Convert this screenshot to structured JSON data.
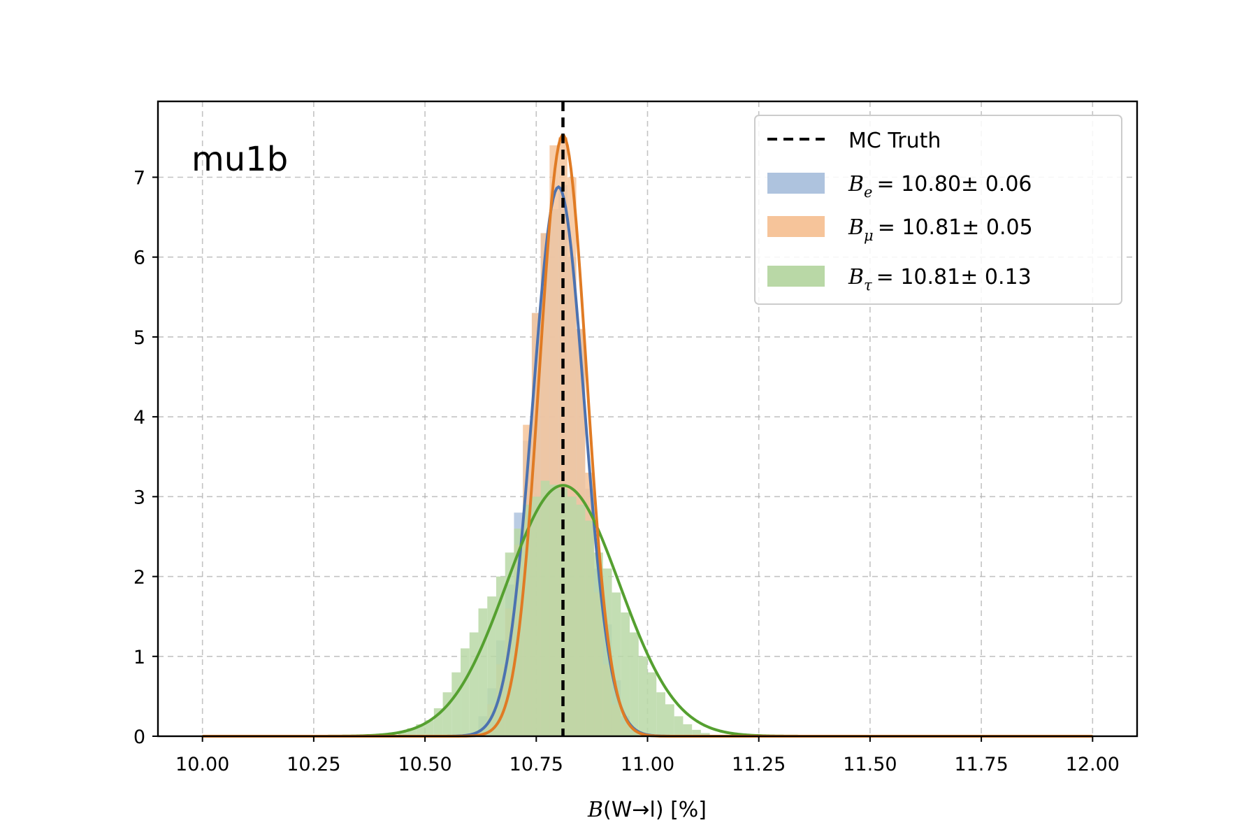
{
  "chart_data": {
    "type": "histogram",
    "title": "",
    "annotation": "mu1b",
    "xlabel": "B(W→l) [%]",
    "xlabel_parts": {
      "sym": "B",
      "rest": "(W→l) [%]"
    },
    "ylabel": "",
    "xlim": [
      9.9,
      12.1
    ],
    "ylim": [
      0,
      7.95
    ],
    "grid": true,
    "legend_position": "top-right",
    "xticks": [
      "10.00",
      "10.25",
      "10.50",
      "10.75",
      "11.00",
      "11.25",
      "11.50",
      "11.75",
      "12.00"
    ],
    "yticks": [
      "0",
      "1",
      "2",
      "3",
      "4",
      "5",
      "6",
      "7"
    ],
    "truth": {
      "name": "MC Truth",
      "x": 10.81,
      "color": "#000000"
    },
    "series": [
      {
        "name": "B_e = 10.80± 0.06",
        "symbol": "B",
        "sub": "e",
        "value_text": "= 10.80± 0.06",
        "mean": 10.8,
        "sigma": 0.058,
        "fill_color": "#aec3de",
        "line_color": "#4c72b0",
        "hist": {
          "edges": [
            10.62,
            10.64,
            10.66,
            10.68,
            10.7,
            10.72,
            10.74,
            10.76,
            10.78,
            10.8,
            10.82,
            10.84,
            10.86,
            10.88,
            10.9,
            10.92,
            10.94,
            10.96,
            10.98
          ],
          "counts": [
            0.25,
            0.6,
            1.2,
            1.9,
            2.8,
            3.7,
            5.3,
            6.3,
            6.6,
            6.9,
            6.0,
            5.1,
            3.1,
            2.1,
            1.4,
            0.7,
            0.25,
            0.08
          ]
        }
      },
      {
        "name": "B_μ = 10.81± 0.05",
        "symbol": "B",
        "sub": "μ",
        "value_text": "= 10.81± 0.05",
        "mean": 10.81,
        "sigma": 0.053,
        "fill_color": "#f6c49a",
        "line_color": "#e07b24",
        "hist": {
          "edges": [
            10.64,
            10.66,
            10.68,
            10.7,
            10.72,
            10.74,
            10.76,
            10.78,
            10.8,
            10.82,
            10.84,
            10.86,
            10.88,
            10.9,
            10.92,
            10.94,
            10.96,
            10.98
          ],
          "counts": [
            0.4,
            0.9,
            1.6,
            2.4,
            3.9,
            5.3,
            6.3,
            7.4,
            7.5,
            7.0,
            5.1,
            3.3,
            1.8,
            0.9,
            0.4,
            0.15,
            0.05
          ]
        }
      },
      {
        "name": "B_τ = 10.81± 0.13",
        "symbol": "B",
        "sub": "τ",
        "value_text": "= 10.81± 0.13",
        "mean": 10.81,
        "sigma": 0.127,
        "fill_color": "#b9d8a6",
        "line_color": "#55a030",
        "hist": {
          "edges": [
            10.44,
            10.46,
            10.48,
            10.5,
            10.52,
            10.54,
            10.56,
            10.58,
            10.6,
            10.62,
            10.64,
            10.66,
            10.68,
            10.7,
            10.72,
            10.74,
            10.76,
            10.78,
            10.8,
            10.82,
            10.84,
            10.86,
            10.88,
            10.9,
            10.92,
            10.94,
            10.96,
            10.98,
            11.0,
            11.02,
            11.04,
            11.06,
            11.08,
            11.1,
            11.12,
            11.14
          ],
          "counts": [
            0.05,
            0.1,
            0.15,
            0.2,
            0.35,
            0.55,
            0.8,
            1.1,
            1.3,
            1.6,
            1.75,
            2.0,
            2.3,
            2.6,
            2.9,
            3.0,
            3.2,
            3.15,
            3.1,
            3.0,
            2.9,
            2.7,
            2.3,
            2.1,
            1.8,
            1.55,
            1.3,
            1.0,
            0.8,
            0.55,
            0.4,
            0.25,
            0.15,
            0.08,
            0.04
          ]
        }
      }
    ]
  }
}
